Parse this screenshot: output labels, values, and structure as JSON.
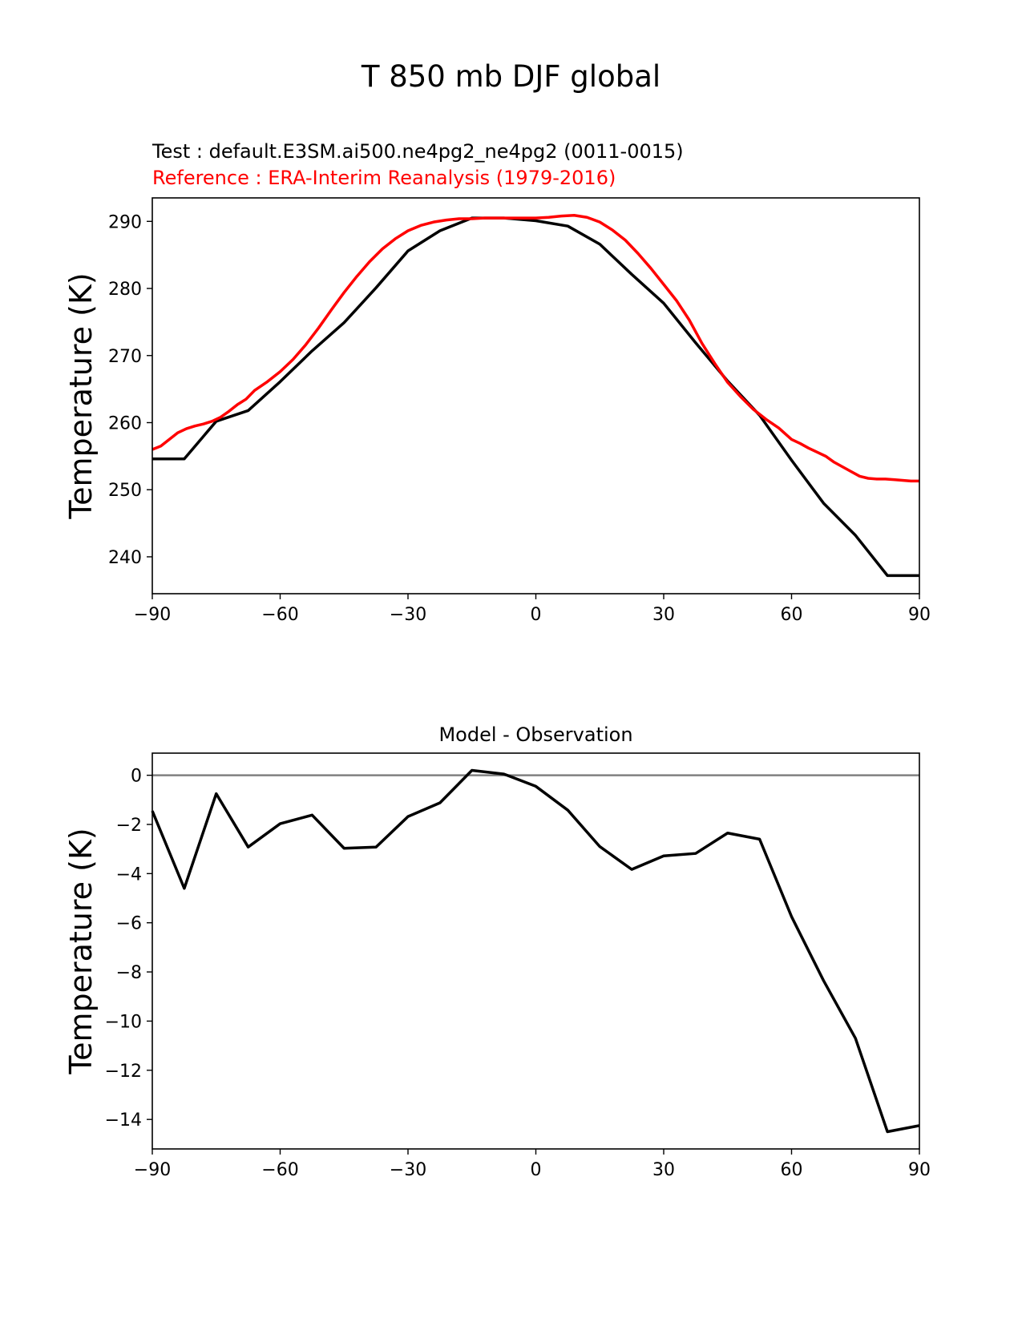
{
  "figure": {
    "suptitle": "T 850 mb DJF global"
  },
  "colors": {
    "test": "#000000",
    "reference": "#ff0000",
    "zero_line": "#808080",
    "axes": "#000000"
  },
  "chart_data": [
    {
      "type": "line",
      "title_test": "Test : default.E3SM.ai500.ne4pg2_ne4pg2 (0011-0015)",
      "title_reference": "Reference : ERA-Interim Reanalysis (1979-2016)",
      "xlabel": "",
      "ylabel": "Temperature (K)",
      "xlim": [
        -90,
        90
      ],
      "ylim": [
        234.5,
        293.5
      ],
      "xticks": [
        -90,
        -60,
        -30,
        0,
        30,
        60,
        90
      ],
      "xtick_labels": [
        "−90",
        "−60",
        "−30",
        "0",
        "30",
        "60",
        "90"
      ],
      "yticks": [
        240,
        250,
        260,
        270,
        280,
        290
      ],
      "ytick_labels": [
        "240",
        "250",
        "260",
        "270",
        "280",
        "290"
      ],
      "series": [
        {
          "name": "Test",
          "color": "#000000",
          "x": [
            -90,
            -82.5,
            -75,
            -67.5,
            -60,
            -52.5,
            -45,
            -37.5,
            -30,
            -22.5,
            -15,
            -7.5,
            0,
            7.5,
            15,
            22.5,
            30,
            37.5,
            45,
            52.5,
            60,
            67.5,
            75,
            82.5,
            90
          ],
          "y": [
            254.6,
            254.6,
            260.2,
            261.8,
            266.1,
            270.7,
            274.9,
            280.1,
            285.6,
            288.6,
            290.5,
            290.5,
            290.1,
            289.3,
            286.6,
            282.1,
            277.8,
            271.9,
            266.2,
            261.1,
            254.4,
            248.0,
            243.2,
            237.2,
            237.2
          ]
        },
        {
          "name": "Reference",
          "color": "#ff0000",
          "x": [
            -90,
            -88,
            -86,
            -84,
            -82,
            -80,
            -78,
            -76,
            -74,
            -72,
            -70,
            -68,
            -66,
            -63,
            -60,
            -57,
            -54,
            -51,
            -48,
            -45,
            -42,
            -39,
            -36,
            -33,
            -30,
            -27,
            -24,
            -21,
            -18,
            -15,
            -12,
            -9,
            -6,
            -3,
            0,
            3,
            6,
            9,
            12,
            15,
            18,
            21,
            24,
            27,
            30,
            33,
            36,
            39,
            42,
            45,
            48,
            51,
            54,
            57,
            60,
            62,
            64,
            66,
            68,
            70,
            72,
            74,
            76,
            78,
            80,
            82,
            84,
            86,
            88,
            90
          ],
          "y": [
            256.0,
            256.5,
            257.5,
            258.5,
            259.1,
            259.5,
            259.8,
            260.2,
            260.8,
            261.7,
            262.7,
            263.5,
            264.8,
            266.1,
            267.6,
            269.4,
            271.6,
            274.1,
            276.8,
            279.4,
            281.8,
            284.0,
            285.9,
            287.4,
            288.6,
            289.4,
            289.9,
            290.2,
            290.4,
            290.4,
            290.5,
            290.5,
            290.5,
            290.5,
            290.5,
            290.6,
            290.8,
            290.9,
            290.6,
            289.9,
            288.7,
            287.2,
            285.2,
            283.0,
            280.6,
            278.2,
            275.3,
            271.8,
            268.8,
            266.0,
            263.9,
            262.0,
            260.5,
            259.2,
            257.5,
            256.9,
            256.2,
            255.6,
            255.0,
            254.1,
            253.4,
            252.7,
            252.0,
            251.7,
            251.6,
            251.6,
            251.5,
            251.4,
            251.3,
            251.3
          ]
        }
      ]
    },
    {
      "type": "line",
      "title": "Model - Observation",
      "xlabel": "",
      "ylabel": "Temperature (K)",
      "xlim": [
        -90,
        90
      ],
      "ylim": [
        -15.2,
        0.9
      ],
      "xticks": [
        -90,
        -60,
        -30,
        0,
        30,
        60,
        90
      ],
      "xtick_labels": [
        "−90",
        "−60",
        "−30",
        "0",
        "30",
        "60",
        "90"
      ],
      "yticks": [
        0,
        -2,
        -4,
        -6,
        -8,
        -10,
        -12,
        -14
      ],
      "ytick_labels": [
        "0",
        "−2",
        "−4",
        "−6",
        "−8",
        "−10",
        "−12",
        "−14"
      ],
      "zero_line": 0,
      "series": [
        {
          "name": "Model - Observation",
          "color": "#000000",
          "x": [
            -90,
            -82.5,
            -75,
            -67.5,
            -60,
            -52.5,
            -45,
            -37.5,
            -30,
            -22.5,
            -15,
            -7.5,
            0,
            7.5,
            15,
            22.5,
            30,
            37.5,
            45,
            52.5,
            60,
            67.5,
            75,
            82.5,
            90
          ],
          "y": [
            -1.45,
            -4.6,
            -0.75,
            -2.92,
            -1.97,
            -1.62,
            -2.97,
            -2.92,
            -1.68,
            -1.12,
            0.2,
            0.05,
            -0.45,
            -1.42,
            -2.9,
            -3.83,
            -3.28,
            -3.18,
            -2.35,
            -2.6,
            -5.75,
            -8.35,
            -10.7,
            -14.5,
            -14.25
          ]
        }
      ]
    }
  ]
}
